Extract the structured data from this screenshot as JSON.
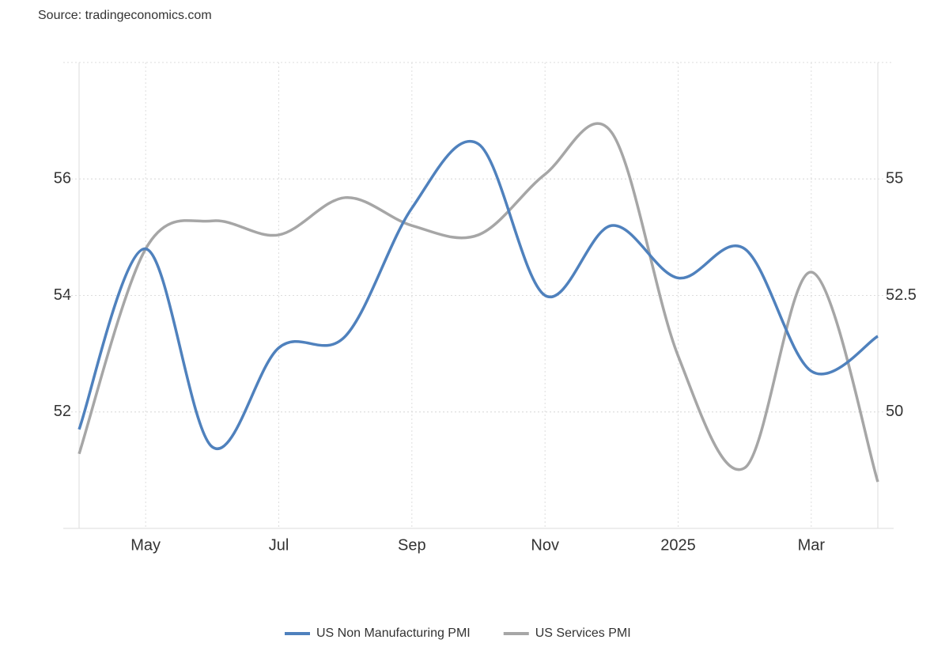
{
  "chart_data": {
    "type": "line",
    "source": "Source: tradingeconomics.com",
    "categories": [
      null,
      "May",
      null,
      "Jul",
      null,
      "Sep",
      null,
      "Nov",
      null,
      "2025",
      null,
      "Mar",
      null
    ],
    "series": [
      {
        "name": "US Non Manufacturing PMI",
        "color": "#4f81bd",
        "values": [
          51.7,
          54.8,
          51.4,
          53.1,
          53.3,
          55.5,
          56.6,
          54.0,
          55.2,
          54.3,
          54.8,
          52.7,
          53.3
        ]
      },
      {
        "name": "US Services PMI",
        "color": "#a6a6a6",
        "axis": "y2",
        "values": [
          49.1,
          53.5,
          54.1,
          53.8,
          54.6,
          54.0,
          53.8,
          55.1,
          56.0,
          51.2,
          48.8,
          53.0,
          48.5
        ]
      }
    ],
    "ylim": [
      50,
      58
    ],
    "yticks": [
      52,
      54,
      56
    ],
    "y2lim": [
      47.5,
      57.5
    ],
    "y2ticks": [
      50,
      52.5,
      55
    ],
    "grid": true,
    "legend": "bottom"
  }
}
